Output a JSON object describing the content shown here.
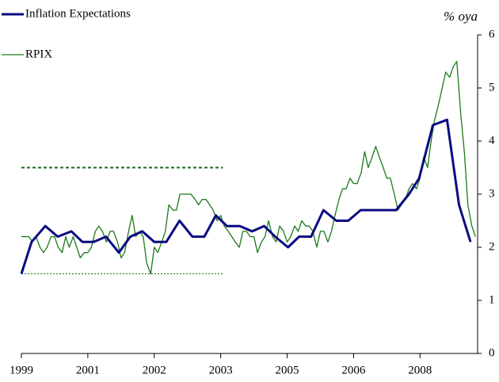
{
  "chart_data": {
    "type": "line",
    "y_label": "% oya",
    "xlim": [
      1999,
      2009.3
    ],
    "xticks": [
      1999,
      {
        "value": 2000.5,
        "label": "2001"
      },
      2002,
      {
        "value": 2003.5,
        "label": "2003"
      },
      2005,
      {
        "value": 2006.5,
        "label": "2006"
      },
      2008
    ],
    "ylim": [
      0,
      6
    ],
    "yticks": [
      0,
      1,
      2,
      3,
      4,
      5,
      6
    ],
    "reference_lines": [
      {
        "value": 3.5,
        "xrange": [
          1999,
          2003.55
        ],
        "style": "dashed",
        "color": "#1a6b1a"
      },
      {
        "value": 1.5,
        "xrange": [
          1999,
          2003.55
        ],
        "style": "dotted",
        "color": "#1a6b1a"
      }
    ],
    "series": [
      {
        "name": "Inflation Expectations",
        "color": "#0a0a80",
        "width": 3,
        "x": [
          1999.0,
          1999.23,
          1999.54,
          1999.82,
          2000.13,
          2000.38,
          2000.63,
          2000.91,
          2001.2,
          2001.46,
          2001.73,
          2002.0,
          2002.27,
          2002.57,
          2002.86,
          2003.13,
          2003.39,
          2003.64,
          2003.93,
          2004.21,
          2004.48,
          2004.73,
          2005.02,
          2005.27,
          2005.54,
          2005.82,
          2006.11,
          2006.38,
          2006.66,
          2006.91,
          2007.18,
          2007.46,
          2007.75,
          2007.98,
          2008.29,
          2008.61,
          2008.88,
          2009.14
        ],
        "values": [
          1.5,
          2.1,
          2.4,
          2.2,
          2.3,
          2.1,
          2.1,
          2.2,
          1.9,
          2.2,
          2.3,
          2.1,
          2.1,
          2.5,
          2.2,
          2.2,
          2.6,
          2.4,
          2.4,
          2.3,
          2.4,
          2.2,
          2.0,
          2.2,
          2.2,
          2.7,
          2.5,
          2.5,
          2.7,
          2.7,
          2.7,
          2.7,
          3.0,
          3.3,
          4.3,
          4.4,
          2.8,
          2.1
        ]
      },
      {
        "name": "RPIX",
        "color": "#1a7a1a",
        "width": 1.3,
        "x": [
          1999.0,
          1999.08,
          1999.17,
          1999.25,
          1999.33,
          1999.42,
          1999.5,
          1999.58,
          1999.67,
          1999.75,
          1999.83,
          1999.92,
          2000.0,
          2000.08,
          2000.17,
          2000.25,
          2000.33,
          2000.42,
          2000.5,
          2000.58,
          2000.67,
          2000.75,
          2000.83,
          2000.92,
          2001.0,
          2001.08,
          2001.17,
          2001.25,
          2001.33,
          2001.42,
          2001.5,
          2001.58,
          2001.67,
          2001.75,
          2001.83,
          2001.92,
          2002.0,
          2002.08,
          2002.17,
          2002.25,
          2002.33,
          2002.42,
          2002.5,
          2002.58,
          2002.67,
          2002.75,
          2002.83,
          2002.92,
          2003.0,
          2003.08,
          2003.17,
          2003.25,
          2003.33,
          2003.42,
          2003.5,
          2003.58,
          2003.67,
          2003.75,
          2003.83,
          2003.92,
          2004.0,
          2004.08,
          2004.17,
          2004.25,
          2004.33,
          2004.42,
          2004.5,
          2004.58,
          2004.67,
          2004.75,
          2004.83,
          2004.92,
          2005.0,
          2005.08,
          2005.17,
          2005.25,
          2005.33,
          2005.42,
          2005.5,
          2005.58,
          2005.67,
          2005.75,
          2005.83,
          2005.92,
          2006.0,
          2006.08,
          2006.17,
          2006.25,
          2006.33,
          2006.42,
          2006.5,
          2006.58,
          2006.67,
          2006.75,
          2006.83,
          2006.92,
          2007.0,
          2007.08,
          2007.17,
          2007.25,
          2007.33,
          2007.42,
          2007.5,
          2007.58,
          2007.67,
          2007.75,
          2007.83,
          2007.92,
          2008.0,
          2008.08,
          2008.17,
          2008.25,
          2008.33,
          2008.42,
          2008.5,
          2008.58,
          2008.67,
          2008.75,
          2008.83,
          2008.92,
          2009.0,
          2009.08,
          2009.17,
          2009.25
        ],
        "values": [
          2.2,
          2.2,
          2.2,
          2.1,
          2.2,
          2.0,
          1.9,
          2.0,
          2.2,
          2.2,
          2.0,
          1.9,
          2.2,
          2.0,
          2.2,
          2.0,
          1.8,
          1.9,
          1.9,
          2.0,
          2.3,
          2.4,
          2.3,
          2.1,
          2.3,
          2.3,
          2.1,
          1.8,
          1.9,
          2.3,
          2.6,
          2.2,
          2.3,
          2.2,
          1.7,
          1.5,
          2.0,
          1.9,
          2.1,
          2.3,
          2.8,
          2.7,
          2.7,
          3.0,
          3.0,
          3.0,
          3.0,
          2.9,
          2.8,
          2.9,
          2.9,
          2.8,
          2.7,
          2.5,
          2.6,
          2.4,
          2.3,
          2.2,
          2.1,
          2.0,
          2.3,
          2.3,
          2.2,
          2.2,
          1.9,
          2.1,
          2.2,
          2.5,
          2.2,
          2.1,
          2.4,
          2.3,
          2.1,
          2.2,
          2.4,
          2.3,
          2.5,
          2.4,
          2.4,
          2.3,
          2.0,
          2.3,
          2.3,
          2.1,
          2.3,
          2.6,
          2.9,
          3.1,
          3.1,
          3.3,
          3.2,
          3.2,
          3.4,
          3.8,
          3.5,
          3.7,
          3.9,
          3.7,
          3.5,
          3.3,
          3.3,
          3.0,
          2.7,
          2.8,
          2.9,
          3.1,
          3.2,
          3.1,
          3.3,
          3.7,
          3.5,
          4.0,
          4.4,
          4.7,
          5.0,
          5.3,
          5.2,
          5.4,
          5.5,
          4.5,
          3.8,
          2.8,
          2.4,
          2.2
        ]
      }
    ]
  }
}
